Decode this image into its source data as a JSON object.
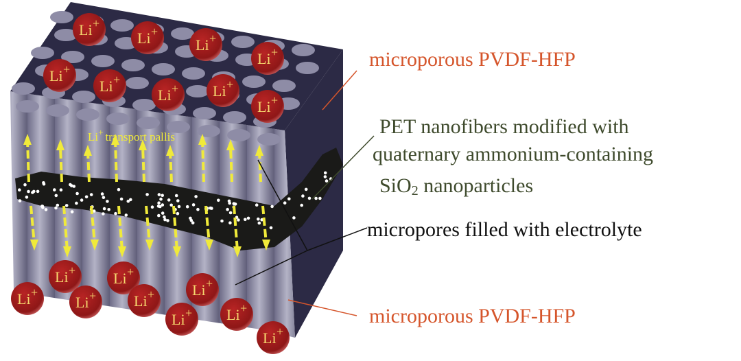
{
  "ion_label": "Li",
  "ion_charge": "+",
  "transport_label": {
    "ion": "Li",
    "charge": "+",
    "text": "transport pallis"
  },
  "labels": {
    "top_layer": "microporous PVDF-HFP",
    "nanofibers_line1": "PET nanofibers modified with",
    "nanofibers_line2": "quaternary ammonium-containing",
    "nanofibers_line3_prefix": "SiO",
    "nanofibers_line3_sub": "2",
    "nanofibers_line3_suffix": " nanoparticles",
    "micropores": "micropores filled with electrolyte",
    "bottom_layer": "microporous PVDF-HFP"
  },
  "colors": {
    "block_dark": "#2c2a45",
    "pore": "#8e8ca6",
    "ion": "#a01c1c",
    "ion_text": "#f5d76e",
    "arrow": "#f0ea3a",
    "fiber": "#1a1a18",
    "label_orange": "#d5552b",
    "label_green": "#3e4a2c"
  }
}
